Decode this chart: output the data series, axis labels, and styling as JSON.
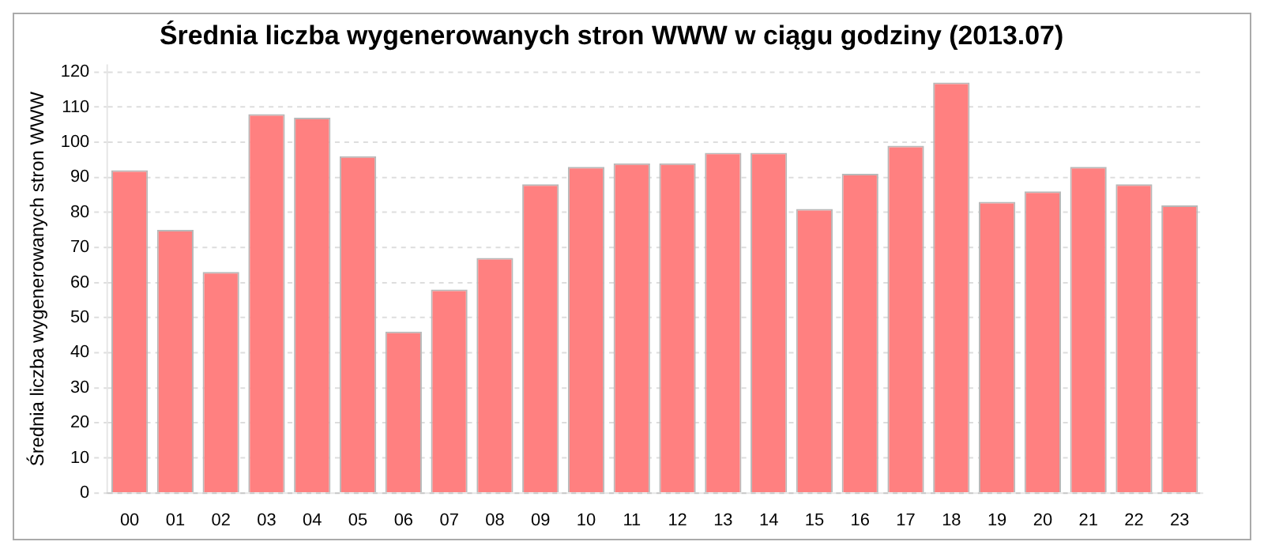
{
  "chart_data": {
    "type": "bar",
    "title": "Średnia liczba wygenerowanych stron WWW w ciągu godziny (2013.07)",
    "ylabel": "Średnia liczba wygenerowanych stron WWW",
    "categories": [
      "00",
      "01",
      "02",
      "03",
      "04",
      "05",
      "06",
      "07",
      "08",
      "09",
      "10",
      "11",
      "12",
      "13",
      "14",
      "15",
      "16",
      "17",
      "18",
      "19",
      "20",
      "21",
      "22",
      "23"
    ],
    "values": [
      92,
      75,
      63,
      108,
      107,
      96,
      46,
      58,
      67,
      88,
      93,
      94,
      94,
      97,
      97,
      81,
      91,
      99,
      117,
      83,
      86,
      93,
      88,
      82
    ],
    "color": "#ff8080",
    "ylim": [
      0,
      122
    ],
    "yticks": [
      0,
      10,
      20,
      30,
      40,
      50,
      60,
      70,
      80,
      90,
      100,
      110,
      120
    ],
    "grid": "y",
    "legend": false
  }
}
